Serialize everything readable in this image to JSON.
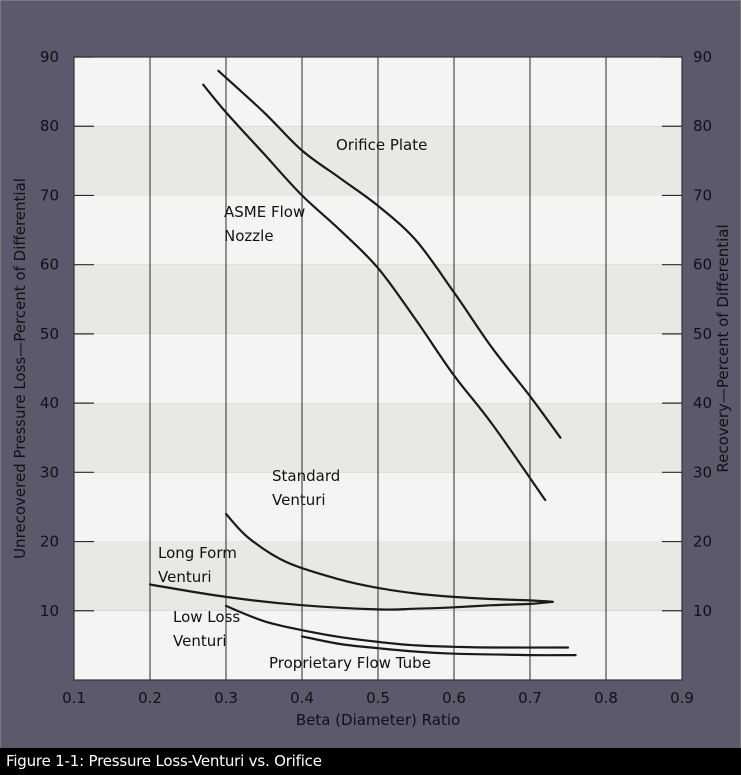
{
  "caption": "Figure 1-1: Pressure Loss-Venturi vs. Orifice",
  "colors": {
    "outer_background": "#c6c6c6",
    "frame_border": "#7a7a7a",
    "band_light": "#f4f4f2",
    "band_dark": "#e9e8e3",
    "line": "#1a1a1a",
    "caption_bar": "#000000",
    "caption_text": "#ffffff"
  },
  "chart_data": {
    "type": "line",
    "xlabel": "Beta (Diameter) Ratio",
    "ylabel_left": "Unrecovered Pressure Loss—Percent of Differential",
    "ylabel_right": "Recovery—Percent of Differential",
    "xlim": [
      0.1,
      0.9
    ],
    "ylim": [
      0,
      90
    ],
    "x_ticks": [
      "0.1",
      "0.2",
      "0.3",
      "0.4",
      "0.5",
      "0.6",
      "0.7",
      "0.8",
      "0.9"
    ],
    "y_ticks_left": [
      "10",
      "20",
      "30",
      "40",
      "50",
      "60",
      "70",
      "80",
      "90"
    ],
    "y_ticks_right": [
      "90",
      "80",
      "70",
      "60",
      "50",
      "40",
      "30",
      "20",
      "10"
    ],
    "grid": "vertical lines with alternating horizontal bands",
    "series": [
      {
        "name": "Orifice Plate",
        "label_lines": [
          "Orifice Plate"
        ],
        "points": [
          [
            0.29,
            88
          ],
          [
            0.35,
            82
          ],
          [
            0.4,
            76.5
          ],
          [
            0.45,
            72.5
          ],
          [
            0.5,
            68.5
          ],
          [
            0.55,
            63.5
          ],
          [
            0.6,
            56
          ],
          [
            0.65,
            48
          ],
          [
            0.7,
            41
          ],
          [
            0.74,
            35
          ]
        ]
      },
      {
        "name": "ASME Flow Nozzle",
        "label_lines": [
          "ASME Flow",
          "Nozzle"
        ],
        "points": [
          [
            0.27,
            86
          ],
          [
            0.3,
            82
          ],
          [
            0.35,
            76
          ],
          [
            0.4,
            70
          ],
          [
            0.45,
            65
          ],
          [
            0.5,
            59.5
          ],
          [
            0.55,
            52
          ],
          [
            0.6,
            44
          ],
          [
            0.65,
            37
          ],
          [
            0.72,
            26
          ]
        ]
      },
      {
        "name": "Standard Venturi",
        "label_lines": [
          "Standard",
          "Venturi"
        ],
        "points": [
          [
            0.3,
            24
          ],
          [
            0.33,
            20.5
          ],
          [
            0.38,
            17
          ],
          [
            0.45,
            14.5
          ],
          [
            0.5,
            13.3
          ],
          [
            0.55,
            12.5
          ],
          [
            0.6,
            12
          ],
          [
            0.65,
            11.7
          ],
          [
            0.7,
            11.5
          ],
          [
            0.73,
            11.3
          ]
        ]
      },
      {
        "name": "Long Form Venturi",
        "label_lines": [
          "Long Form",
          "Venturi"
        ],
        "points": [
          [
            0.2,
            13.8
          ],
          [
            0.3,
            12
          ],
          [
            0.4,
            10.8
          ],
          [
            0.5,
            10.2
          ],
          [
            0.55,
            10.3
          ],
          [
            0.6,
            10.5
          ],
          [
            0.65,
            10.8
          ],
          [
            0.7,
            11
          ],
          [
            0.73,
            11.3
          ]
        ]
      },
      {
        "name": "Low Loss Venturi",
        "label_lines": [
          "Low Loss",
          "Venturi"
        ],
        "points": [
          [
            0.3,
            10.7
          ],
          [
            0.35,
            8.5
          ],
          [
            0.4,
            7.2
          ],
          [
            0.45,
            6.2
          ],
          [
            0.5,
            5.5
          ],
          [
            0.55,
            5
          ],
          [
            0.6,
            4.8
          ],
          [
            0.65,
            4.7
          ],
          [
            0.75,
            4.7
          ]
        ]
      },
      {
        "name": "Proprietary Flow Tube",
        "label_lines": [
          "Proprietary Flow Tube"
        ],
        "points": [
          [
            0.4,
            6.3
          ],
          [
            0.45,
            5.2
          ],
          [
            0.5,
            4.6
          ],
          [
            0.55,
            4.1
          ],
          [
            0.6,
            3.8
          ],
          [
            0.7,
            3.6
          ],
          [
            0.76,
            3.6
          ]
        ]
      }
    ]
  }
}
